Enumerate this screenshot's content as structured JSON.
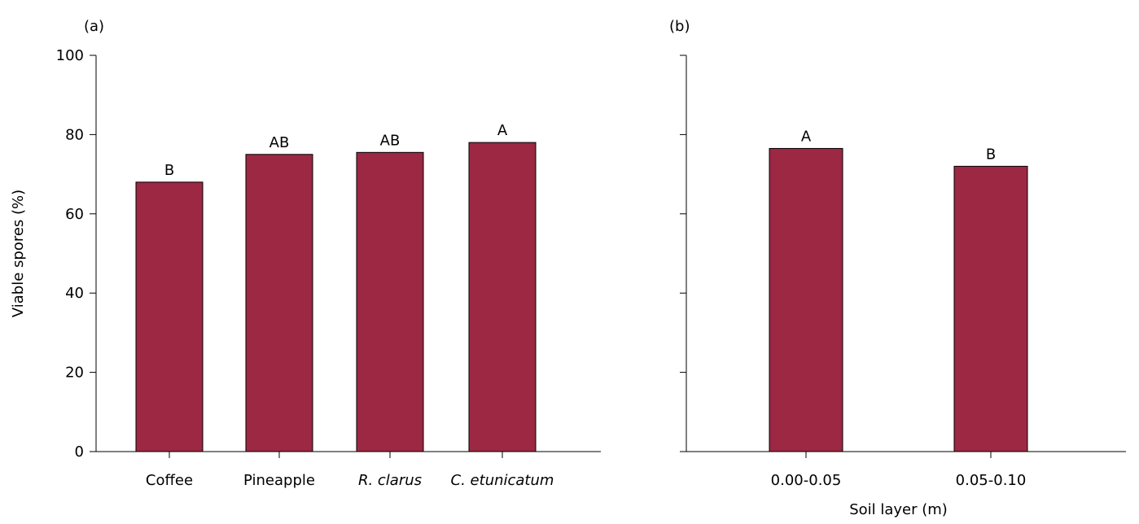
{
  "colors": {
    "bar_fill": "#9c2843"
  },
  "chart_data": [
    {
      "panel_label": "(a)",
      "type": "bar",
      "categories": [
        {
          "label": "Coffee",
          "italic": false
        },
        {
          "label": "Pineapple",
          "italic": false
        },
        {
          "label": "R. clarus",
          "italic": true
        },
        {
          "label": "C. etunicatum",
          "italic": true
        }
      ],
      "values": [
        68,
        75,
        75.5,
        78
      ],
      "bar_labels": [
        "B",
        "AB",
        "AB",
        "A"
      ],
      "xlabel": "",
      "ylabel": "Viable spores  (%)",
      "ylim": [
        0,
        100
      ],
      "yticks": [
        0,
        20,
        40,
        60,
        80,
        100
      ],
      "show_ytick_labels": true,
      "grid": false
    },
    {
      "panel_label": "(b)",
      "type": "bar",
      "categories": [
        {
          "label": "0.00-0.05",
          "italic": false
        },
        {
          "label": "0.05-0.10",
          "italic": false
        }
      ],
      "values": [
        76.5,
        72
      ],
      "bar_labels": [
        "A",
        "B"
      ],
      "xlabel": "Soil layer (m)",
      "ylabel": "",
      "ylim": [
        0,
        100
      ],
      "yticks": [
        0,
        20,
        40,
        60,
        80,
        100
      ],
      "show_ytick_labels": false,
      "grid": false
    }
  ]
}
